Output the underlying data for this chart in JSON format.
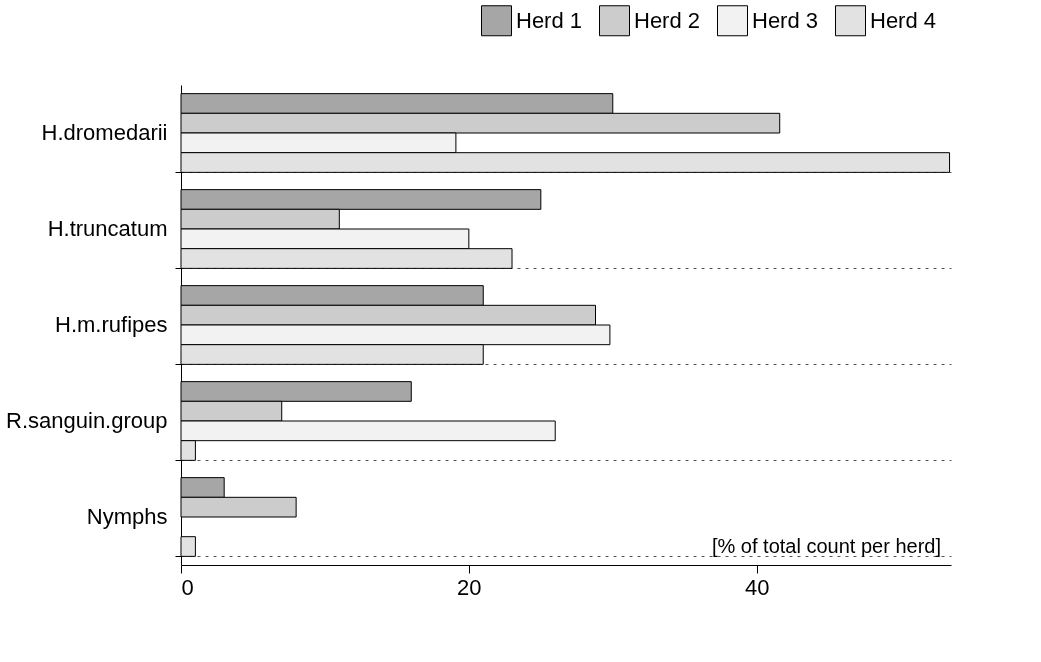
{
  "chart_data": {
    "type": "bar",
    "orientation": "horizontal",
    "categories": [
      "H.dromedarii",
      "H.truncatum",
      "H.m.rufipes",
      "R.sanguin.group",
      "Nymphs"
    ],
    "series": [
      {
        "name": "Herd 1",
        "color": "#a6a6a6",
        "values": [
          30,
          25,
          21,
          16,
          3
        ]
      },
      {
        "name": "Herd 2",
        "color": "#cccccc",
        "values": [
          41.6,
          11,
          28.8,
          7,
          8
        ]
      },
      {
        "name": "Herd 3",
        "color": "#f2f2f2",
        "values": [
          19.1,
          20,
          29.8,
          26,
          null
        ]
      },
      {
        "name": "Herd 4",
        "color": "#e2e2e2",
        "values": [
          53.4,
          23,
          21,
          1,
          1
        ]
      }
    ],
    "xlim": [
      0,
      53.5
    ],
    "xticks": [
      0,
      20,
      40
    ],
    "grid": "y",
    "legend": "top right",
    "annotations": [
      "[% of total count per herd]"
    ]
  }
}
